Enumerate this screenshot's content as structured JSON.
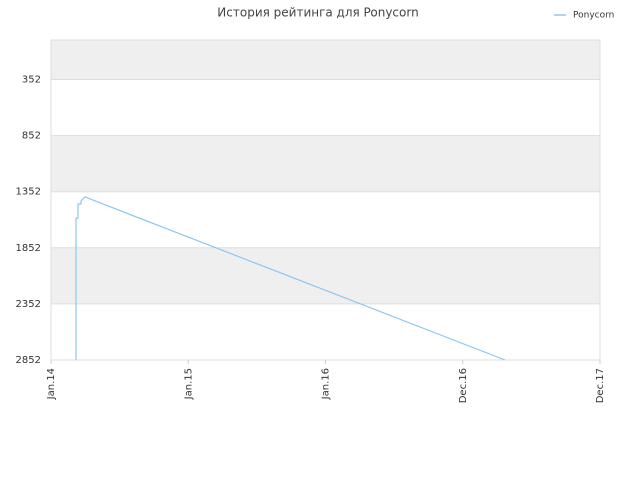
{
  "chart_data": {
    "type": "line",
    "title": "История рейтинга для Ponycorn",
    "xlim": [
      0,
      48
    ],
    "xticks": [
      {
        "value": 0,
        "label": "Jan.14"
      },
      {
        "value": 12,
        "label": "Jan.15"
      },
      {
        "value": 24,
        "label": "Jan.16"
      },
      {
        "value": 36,
        "label": "Dec.16"
      },
      {
        "value": 48,
        "label": "Dec.17"
      }
    ],
    "ylim": [
      2852,
      0
    ],
    "yticks": [
      352,
      852,
      1352,
      1852,
      2352,
      2852
    ],
    "grid": true,
    "legend": "top-right",
    "step": true,
    "series": [
      {
        "name": "Ponycorn",
        "color": "#8ec7f0",
        "x": [
          2.19,
          2.19,
          2.36,
          2.36,
          2.62,
          2.62,
          2.97,
          39.7
        ],
        "values": [
          2852,
          1587,
          1587,
          1462,
          1462,
          1435,
          1399,
          2852
        ]
      }
    ]
  }
}
